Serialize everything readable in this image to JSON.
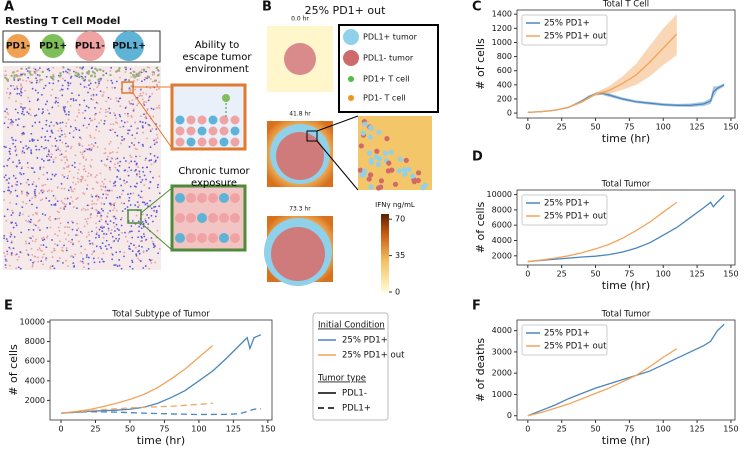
{
  "figure": {
    "panel_a": {
      "label": "A",
      "title": "Resting T Cell Model",
      "cell_types": [
        "PD1-",
        "PD1+",
        "PDL1-",
        "PDL1+"
      ],
      "annotations": [
        "Ability to escape tumor environment",
        "Chronic tumor exposure"
      ]
    },
    "panel_b": {
      "label": "B",
      "title": "25% PD1+ out",
      "times": [
        "0.0 hr",
        "41.8 hr",
        "73.3 hr"
      ],
      "legend": [
        "PDL1+ tumor",
        "PDL1- tumor",
        "PD1+ T cell",
        "PD1- T cell"
      ],
      "colorbar": {
        "label": "IFNγ ng/mL",
        "clim": [
          0,
          75
        ],
        "ticks": [
          70,
          35,
          0
        ]
      }
    }
  },
  "chart_data": [
    {
      "panel": "C",
      "type": "line",
      "title": "Total T Cell",
      "xlabel": "time (hr)",
      "ylabel": "# of cells",
      "xlim": [
        -8,
        153
      ],
      "xticks": [
        0,
        25,
        50,
        75,
        100,
        125,
        150
      ],
      "ylim": [
        -70,
        1460
      ],
      "yticks": [
        0,
        200,
        400,
        600,
        800,
        1000,
        1200,
        1400
      ],
      "legend": "upper left",
      "series": [
        {
          "name": "25% PD1+",
          "color": "#4a86bf",
          "x": [
            0,
            10,
            20,
            30,
            40,
            45,
            50,
            55,
            60,
            70,
            80,
            90,
            100,
            110,
            120,
            130,
            135,
            137,
            140,
            145
          ],
          "values": [
            10,
            20,
            40,
            80,
            170,
            230,
            270,
            280,
            255,
            200,
            160,
            140,
            120,
            110,
            110,
            130,
            170,
            300,
            350,
            400
          ],
          "lower": [
            5,
            15,
            35,
            70,
            150,
            210,
            250,
            255,
            230,
            180,
            140,
            120,
            100,
            90,
            85,
            100,
            130,
            220,
            320,
            380
          ],
          "upper": [
            15,
            25,
            45,
            90,
            190,
            250,
            290,
            305,
            280,
            220,
            180,
            160,
            140,
            130,
            135,
            160,
            210,
            380,
            380,
            420
          ]
        },
        {
          "name": "25% PD1+ out",
          "color": "#f2a45a",
          "x": [
            0,
            10,
            20,
            30,
            40,
            50,
            60,
            70,
            80,
            90,
            100,
            110
          ],
          "values": [
            10,
            20,
            40,
            80,
            160,
            270,
            320,
            420,
            540,
            720,
            920,
            1120
          ],
          "lower": [
            5,
            15,
            35,
            70,
            145,
            250,
            270,
            330,
            400,
            520,
            680,
            820
          ],
          "upper": [
            15,
            25,
            45,
            90,
            175,
            290,
            380,
            520,
            700,
            950,
            1200,
            1400
          ]
        }
      ]
    },
    {
      "panel": "D",
      "type": "line",
      "title": "Total Tumor",
      "xlabel": "time (hr)",
      "ylabel": "# of cells",
      "xlim": [
        -8,
        153
      ],
      "xticks": [
        0,
        25,
        50,
        75,
        100,
        125,
        150
      ],
      "ylim": [
        800,
        10600
      ],
      "yticks": [
        2000,
        4000,
        6000,
        8000,
        10000
      ],
      "legend": "upper left",
      "series": [
        {
          "name": "25% PD1+",
          "color": "#4a86bf",
          "x": [
            0,
            10,
            20,
            30,
            40,
            50,
            60,
            70,
            80,
            90,
            100,
            110,
            120,
            130,
            135,
            137,
            140,
            145
          ],
          "values": [
            1250,
            1400,
            1550,
            1700,
            1850,
            1950,
            2150,
            2500,
            3000,
            3700,
            4700,
            5700,
            7000,
            8300,
            9000,
            8400,
            9000,
            9900
          ]
        },
        {
          "name": "25% PD1+ out",
          "color": "#f2a45a",
          "x": [
            0,
            10,
            20,
            30,
            40,
            50,
            60,
            70,
            80,
            90,
            100,
            110
          ],
          "values": [
            1250,
            1450,
            1700,
            2000,
            2400,
            2900,
            3500,
            4300,
            5300,
            6400,
            7700,
            9000
          ]
        }
      ]
    },
    {
      "panel": "E",
      "type": "line",
      "title": "Total Subtype of Tumor",
      "xlabel": "time (hr)",
      "ylabel": "# of cells",
      "xlim": [
        -8,
        153
      ],
      "xticks": [
        0,
        25,
        50,
        75,
        100,
        125,
        150
      ],
      "ylim": [
        0,
        10200
      ],
      "yticks": [
        2000,
        4000,
        6000,
        8000,
        10000
      ],
      "legend_groups": [
        {
          "title": "Initial Condition",
          "entries": [
            {
              "name": "25% PD1+",
              "color": "#4a86bf",
              "dash": "solid"
            },
            {
              "name": "25% PD1+ out",
              "color": "#f2a45a",
              "dash": "solid"
            }
          ]
        },
        {
          "title": "Tumor type",
          "entries": [
            {
              "name": "PDL1-",
              "color": "#000000",
              "dash": "solid"
            },
            {
              "name": "PDL1+",
              "color": "#000000",
              "dash": "dashed"
            }
          ]
        }
      ],
      "series": [
        {
          "color": "#4a86bf",
          "dash": "solid",
          "x": [
            0,
            10,
            20,
            30,
            40,
            50,
            60,
            70,
            80,
            90,
            100,
            110,
            120,
            130,
            135,
            137,
            140,
            145
          ],
          "values": [
            700,
            780,
            880,
            950,
            1000,
            1100,
            1300,
            1700,
            2300,
            3000,
            4000,
            5000,
            6300,
            7700,
            8400,
            7300,
            8400,
            8700
          ]
        },
        {
          "color": "#f2a45a",
          "dash": "solid",
          "x": [
            0,
            10,
            20,
            30,
            40,
            50,
            60,
            70,
            80,
            90,
            100,
            110
          ],
          "values": [
            700,
            850,
            1050,
            1350,
            1700,
            2100,
            2600,
            3300,
            4200,
            5200,
            6400,
            7600
          ]
        },
        {
          "color": "#4a86bf",
          "dash": "dashed",
          "x": [
            0,
            20,
            40,
            60,
            80,
            100,
            120,
            130,
            140,
            145
          ],
          "values": [
            700,
            850,
            800,
            700,
            620,
            560,
            580,
            650,
            1100,
            1150
          ]
        },
        {
          "color": "#f2a45a",
          "dash": "dashed",
          "x": [
            0,
            20,
            40,
            60,
            80,
            100,
            110
          ],
          "values": [
            700,
            950,
            1150,
            1300,
            1400,
            1600,
            1700
          ]
        }
      ]
    },
    {
      "panel": "F",
      "type": "line",
      "title": "Total Tumor",
      "xlabel": "time (hr)",
      "ylabel": "# of deaths",
      "xlim": [
        -8,
        153
      ],
      "xticks": [
        0,
        25,
        50,
        75,
        100,
        125,
        150
      ],
      "ylim": [
        -200,
        4500
      ],
      "yticks": [
        0,
        1000,
        2000,
        3000,
        4000
      ],
      "legend": "upper left",
      "series": [
        {
          "name": "25% PD1+",
          "color": "#4a86bf",
          "x": [
            0,
            10,
            20,
            30,
            40,
            50,
            60,
            70,
            80,
            90,
            100,
            110,
            120,
            130,
            135,
            140,
            145
          ],
          "values": [
            0,
            250,
            500,
            800,
            1050,
            1300,
            1500,
            1700,
            1900,
            2100,
            2400,
            2700,
            3000,
            3300,
            3500,
            4000,
            4300
          ]
        },
        {
          "name": "25% PD1+ out",
          "color": "#f2a45a",
          "x": [
            0,
            10,
            20,
            30,
            40,
            50,
            60,
            70,
            80,
            90,
            100,
            110
          ],
          "values": [
            0,
            150,
            350,
            550,
            800,
            1050,
            1300,
            1600,
            1900,
            2300,
            2750,
            3150
          ]
        }
      ]
    }
  ]
}
